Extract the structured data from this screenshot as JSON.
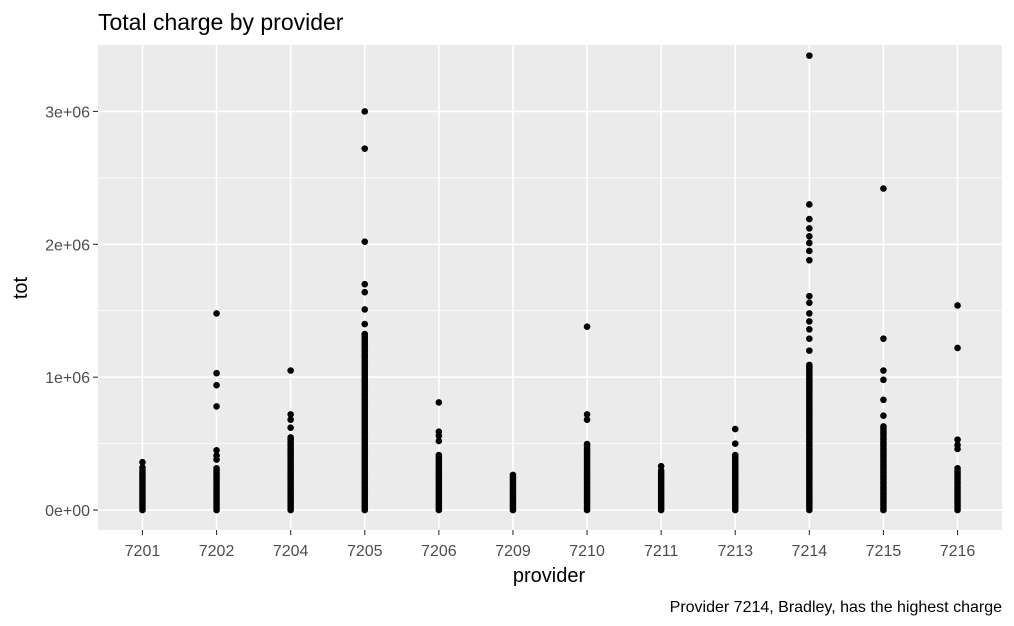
{
  "chart_data": {
    "type": "scatter",
    "title": "Total charge by provider",
    "subtitle": "",
    "caption": "Provider 7214, Bradley, has the highest charge",
    "xlabel": "provider",
    "ylabel": "tot",
    "categories": [
      "7201",
      "7202",
      "7204",
      "7205",
      "7206",
      "7209",
      "7210",
      "7211",
      "7213",
      "7214",
      "7215",
      "7216"
    ],
    "ylim": [
      -150000,
      3500000
    ],
    "y_ticks": [
      0,
      1000000,
      2000000,
      3000000
    ],
    "y_tick_labels": [
      "0e+00",
      "1e+06",
      "2e+06",
      "3e+06"
    ],
    "grid": true,
    "background_color": "#ebebeb",
    "point_color": "#000000",
    "series": [
      {
        "category": "7201",
        "column_range": [
          0,
          300000
        ],
        "outliers": [
          320000,
          360000
        ]
      },
      {
        "category": "7202",
        "column_range": [
          0,
          320000
        ],
        "outliers": [
          380000,
          410000,
          450000,
          780000,
          940000,
          1030000,
          1480000
        ]
      },
      {
        "category": "7204",
        "column_range": [
          0,
          560000
        ],
        "outliers": [
          620000,
          680000,
          720000,
          1050000
        ]
      },
      {
        "category": "7205",
        "column_range": [
          0,
          1330000
        ],
        "outliers": [
          1400000,
          1510000,
          1640000,
          1700000,
          2020000,
          2720000,
          3000000
        ]
      },
      {
        "category": "7206",
        "column_range": [
          0,
          420000
        ],
        "outliers": [
          520000,
          560000,
          590000,
          810000
        ]
      },
      {
        "category": "7209",
        "column_range": [
          0,
          280000
        ],
        "outliers": []
      },
      {
        "category": "7210",
        "column_range": [
          0,
          500000
        ],
        "outliers": [
          680000,
          720000,
          1380000
        ]
      },
      {
        "category": "7211",
        "column_range": [
          0,
          300000
        ],
        "outliers": [
          330000
        ]
      },
      {
        "category": "7213",
        "column_range": [
          0,
          420000
        ],
        "outliers": [
          500000,
          610000
        ]
      },
      {
        "category": "7214",
        "column_range": [
          0,
          1100000
        ],
        "outliers": [
          1200000,
          1290000,
          1360000,
          1420000,
          1480000,
          1560000,
          1610000,
          1880000,
          1950000,
          2010000,
          2060000,
          2120000,
          2190000,
          2300000,
          3420000
        ]
      },
      {
        "category": "7215",
        "column_range": [
          0,
          640000
        ],
        "outliers": [
          710000,
          830000,
          980000,
          1050000,
          1290000,
          2420000
        ]
      },
      {
        "category": "7216",
        "column_range": [
          0,
          330000
        ],
        "outliers": [
          460000,
          490000,
          530000,
          1220000,
          1540000
        ]
      }
    ]
  }
}
